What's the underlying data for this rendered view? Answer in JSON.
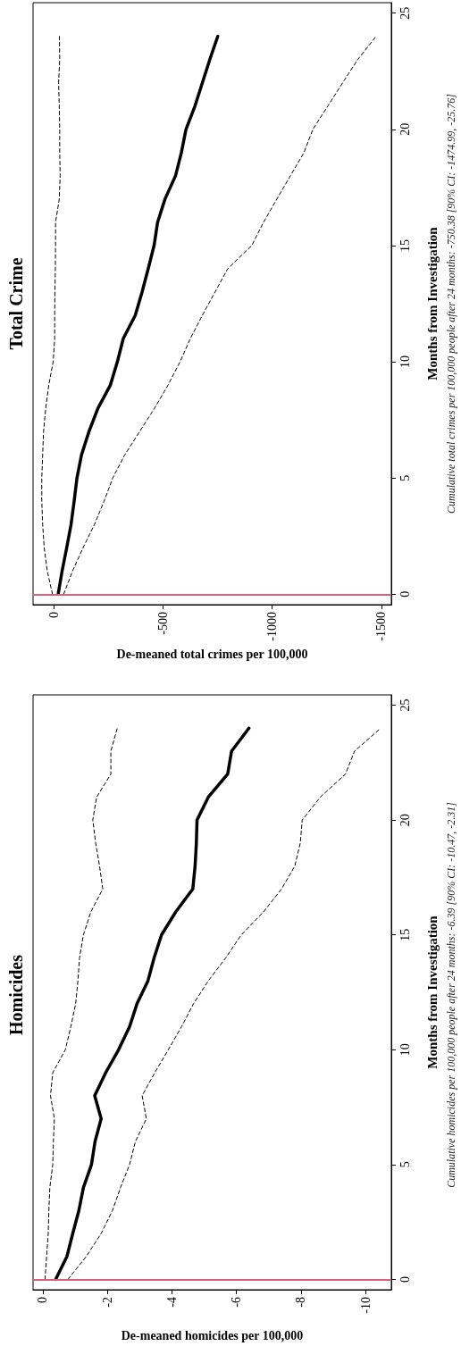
{
  "chart_data": [
    {
      "type": "line",
      "title": "Homicides",
      "xlabel": "De-meaned homicides per 100,000",
      "ylabel": "Months from Investigation",
      "annotations": [
        "Cumulative homicides per 100,000 people after 24 months: -6.39 [90% CI: -10.47, -2.31]"
      ],
      "xlim": [
        0.3,
        -10.8
      ],
      "xticks": [
        0,
        -2,
        -4,
        -6,
        -8,
        -10
      ],
      "ylim": [
        -0.45,
        25.45
      ],
      "yticks": [
        0,
        5,
        10,
        15,
        20,
        25
      ],
      "grid": false,
      "marker": "none",
      "ref_lines": [
        {
          "axis": "y",
          "value": 0,
          "color": "#d9607a"
        }
      ],
      "series": [
        {
          "color": "#000000",
          "line_style": "solid",
          "x": [
            -0.4,
            -0.75,
            -0.93,
            -1.12,
            -1.26,
            -1.51,
            -1.62,
            -1.81,
            -1.61,
            -1.95,
            -2.35,
            -2.69,
            -2.92,
            -3.26,
            -3.45,
            -3.68,
            -4.12,
            -4.65,
            -4.72,
            -4.76,
            -4.78,
            -5.13,
            -5.73,
            -5.85,
            -6.39
          ],
          "values": [
            0,
            1,
            2,
            3,
            4,
            5,
            6,
            7,
            8,
            9,
            10,
            11,
            12,
            13,
            14,
            15,
            16,
            17,
            18,
            19,
            20,
            21,
            22,
            23,
            24
          ]
        },
        {
          "color": "#000000",
          "line_style": "dashed",
          "x": [
            -0.07,
            -0.12,
            -0.17,
            -0.19,
            -0.22,
            -0.31,
            -0.33,
            -0.36,
            -0.24,
            -0.31,
            -0.7,
            -0.87,
            -1.02,
            -1.09,
            -1.14,
            -1.26,
            -1.49,
            -1.86,
            -1.76,
            -1.64,
            -1.55,
            -1.67,
            -2.11,
            -2.11,
            -2.31
          ],
          "values": [
            0,
            1,
            2,
            3,
            4,
            5,
            6,
            7,
            8,
            9,
            10,
            11,
            12,
            13,
            14,
            15,
            16,
            17,
            18,
            19,
            20,
            21,
            22,
            23,
            24
          ]
        },
        {
          "color": "#000000",
          "line_style": "dashed",
          "x": [
            -0.78,
            -1.35,
            -1.81,
            -2.16,
            -2.41,
            -2.69,
            -2.87,
            -3.21,
            -3.08,
            -3.47,
            -3.89,
            -4.3,
            -4.67,
            -5.13,
            -5.67,
            -6.15,
            -6.84,
            -7.4,
            -7.81,
            -7.98,
            -8.04,
            -8.6,
            -9.38,
            -9.66,
            -10.47
          ],
          "values": [
            0,
            1,
            2,
            3,
            4,
            5,
            6,
            7,
            8,
            9,
            10,
            11,
            12,
            13,
            14,
            15,
            16,
            17,
            18,
            19,
            20,
            21,
            22,
            23,
            24
          ]
        }
      ]
    },
    {
      "type": "line",
      "title": "Total Crime",
      "xlabel": "De-meaned total crimes per 100,000",
      "ylabel": "Months from Investigation",
      "annotations": [
        "Cumulative total crimes per 100,000 people after 24 months: -750.38 [90% CI: -1474.99, -25.76]"
      ],
      "xlim": [
        95,
        -1545
      ],
      "xticks": [
        0,
        -500,
        -1000,
        -1500
      ],
      "ylim": [
        -0.45,
        25.45
      ],
      "yticks": [
        0,
        5,
        10,
        15,
        20,
        25
      ],
      "grid": false,
      "marker": "none",
      "ref_lines": [
        {
          "axis": "y",
          "value": 0,
          "color": "#d9607a"
        }
      ],
      "series": [
        {
          "color": "#000000",
          "line_style": "solid",
          "x": [
            -20,
            -38,
            -59,
            -79,
            -93,
            -106,
            -127,
            -161,
            -202,
            -259,
            -291,
            -318,
            -373,
            -404,
            -432,
            -459,
            -475,
            -509,
            -557,
            -584,
            -605,
            -646,
            -680,
            -714,
            -750.38
          ],
          "values": [
            0,
            1,
            2,
            3,
            4,
            5,
            6,
            7,
            8,
            9,
            10,
            11,
            12,
            13,
            14,
            15,
            16,
            17,
            18,
            19,
            20,
            21,
            22,
            23,
            24
          ]
        },
        {
          "color": "#000000",
          "line_style": "dashed",
          "x": [
            6,
            30,
            44,
            51,
            55,
            55,
            51,
            47,
            37,
            23,
            3,
            -4,
            -4,
            -5,
            -7,
            -8,
            -8,
            -25,
            -29,
            -27,
            -27,
            -25,
            -22,
            -27,
            -25.76
          ],
          "values": [
            0,
            1,
            2,
            3,
            4,
            5,
            6,
            7,
            8,
            9,
            10,
            11,
            12,
            13,
            14,
            15,
            16,
            17,
            18,
            19,
            20,
            21,
            22,
            23,
            24
          ]
        },
        {
          "color": "#000000",
          "line_style": "dashed",
          "x": [
            -45,
            -86,
            -134,
            -186,
            -230,
            -270,
            -325,
            -393,
            -461,
            -523,
            -578,
            -625,
            -680,
            -738,
            -796,
            -906,
            -960,
            -1021,
            -1083,
            -1145,
            -1186,
            -1254,
            -1322,
            -1391,
            -1474.99
          ],
          "values": [
            0,
            1,
            2,
            3,
            4,
            5,
            6,
            7,
            8,
            9,
            10,
            11,
            12,
            13,
            14,
            15,
            16,
            17,
            18,
            19,
            20,
            21,
            22,
            23,
            24
          ]
        }
      ]
    }
  ]
}
